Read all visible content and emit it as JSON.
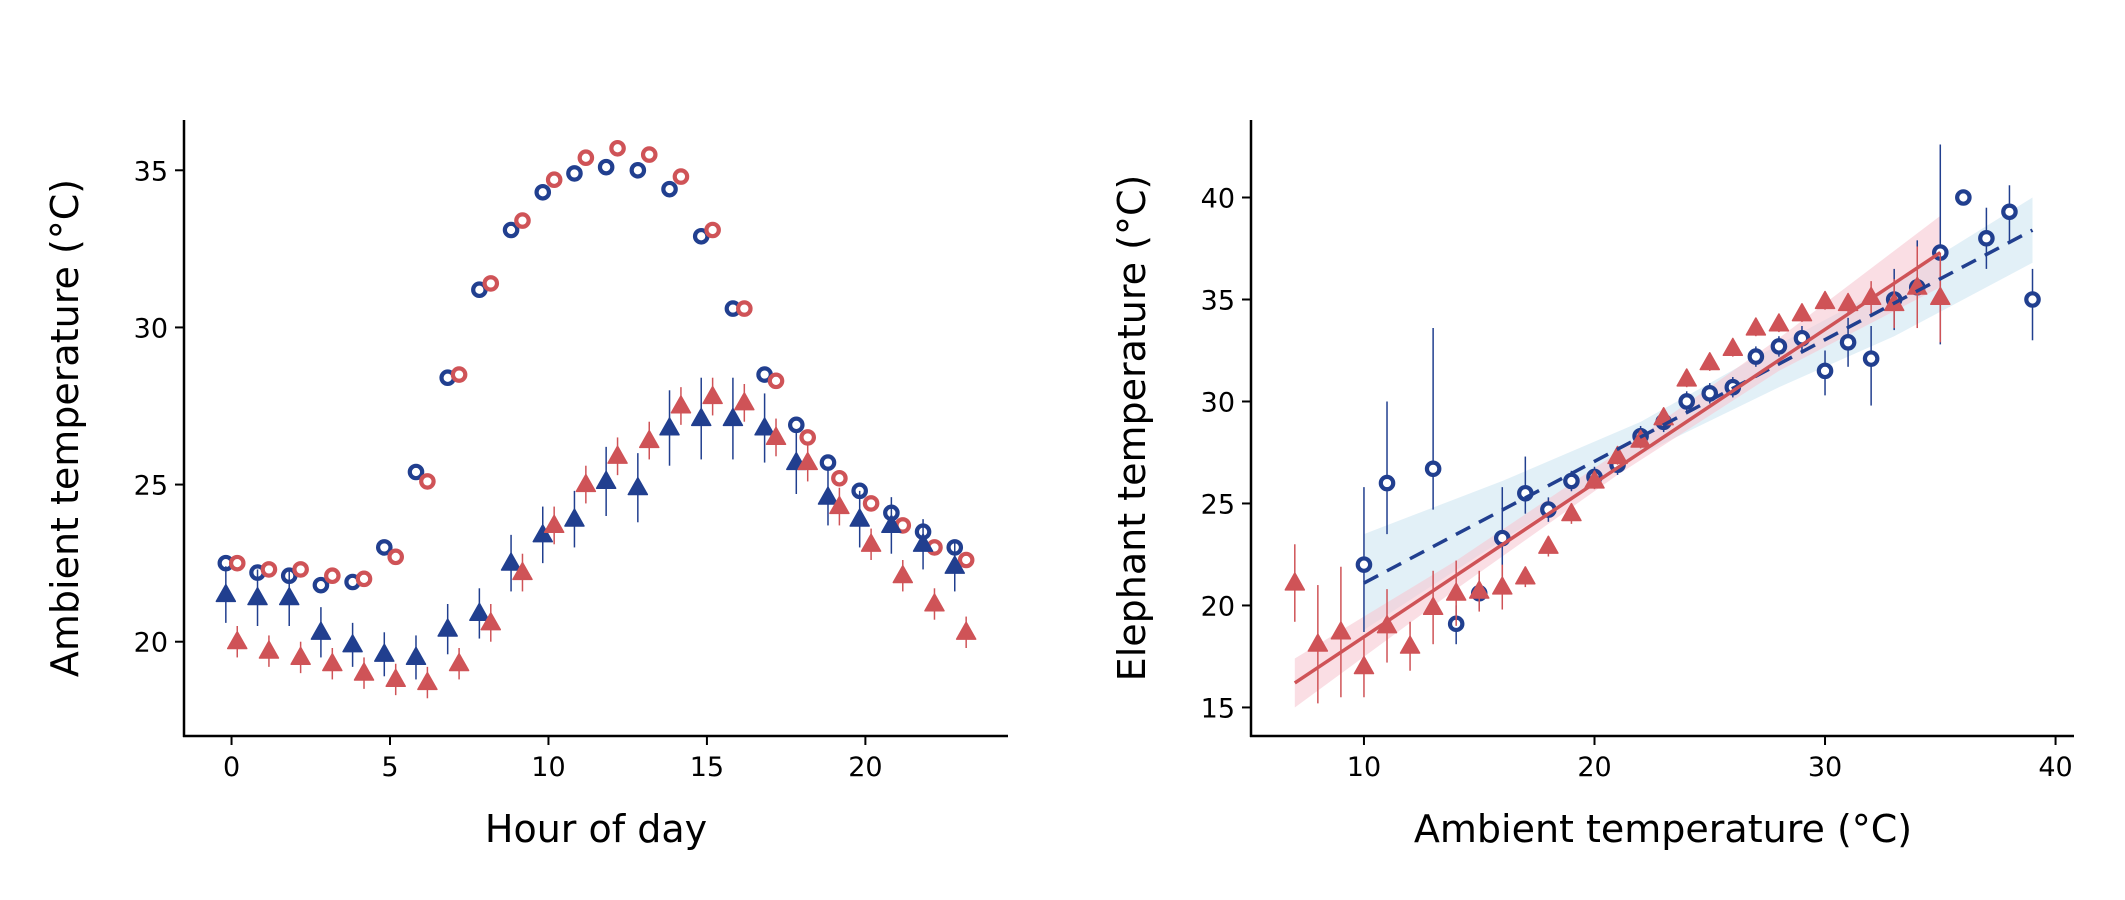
{
  "colors": {
    "blue": "#213f8f",
    "red": "#cf5357",
    "blue_band": "#cfe6f2",
    "red_band": "#f7c8d2"
  },
  "chart_data": [
    {
      "type": "scatter",
      "title": "",
      "xlabel": "Hour of day",
      "ylabel": "Ambient temperature (°C)",
      "xlim": [
        -1.5,
        24.5
      ],
      "ylim": [
        17.0,
        36.6
      ],
      "xticks": [
        "0",
        "5",
        "10",
        "15",
        "20"
      ],
      "yticks": [
        "20",
        "25",
        "30",
        "35"
      ],
      "grid": false,
      "series": [
        {
          "marker": "circle",
          "color": "blue",
          "x_offset": -0.18,
          "x": [
            0,
            1,
            2,
            3,
            4,
            5,
            6,
            7,
            8,
            9,
            10,
            11,
            12,
            13,
            14,
            15,
            16,
            17,
            18,
            19,
            20,
            21,
            22,
            23
          ],
          "y": [
            22.5,
            22.2,
            22.1,
            21.8,
            21.9,
            23.0,
            25.4,
            28.4,
            31.2,
            33.1,
            34.3,
            34.9,
            35.1,
            35.0,
            34.4,
            32.9,
            30.6,
            28.5,
            26.9,
            25.7,
            24.8,
            24.1,
            23.5,
            23.0
          ]
        },
        {
          "marker": "circle",
          "color": "red",
          "x_offset": 0.18,
          "x": [
            0,
            1,
            2,
            3,
            4,
            5,
            6,
            7,
            8,
            9,
            10,
            11,
            12,
            13,
            14,
            15,
            16,
            17,
            18,
            19,
            20,
            21,
            22,
            23
          ],
          "y": [
            22.5,
            22.3,
            22.3,
            22.1,
            22.0,
            22.7,
            25.1,
            28.5,
            31.4,
            33.4,
            34.7,
            35.4,
            35.7,
            35.5,
            34.8,
            33.1,
            30.6,
            28.3,
            26.5,
            25.2,
            24.4,
            23.7,
            23.0,
            22.6
          ]
        },
        {
          "marker": "triangle",
          "color": "blue",
          "x_offset": -0.18,
          "x": [
            0,
            1,
            2,
            3,
            4,
            5,
            6,
            7,
            8,
            9,
            10,
            11,
            12,
            13,
            14,
            15,
            16,
            17,
            18,
            19,
            20,
            21,
            22,
            23
          ],
          "y": [
            21.5,
            21.4,
            21.4,
            20.3,
            19.9,
            19.6,
            19.5,
            20.4,
            20.9,
            22.5,
            23.4,
            23.9,
            25.1,
            24.9,
            26.8,
            27.1,
            27.1,
            26.8,
            25.7,
            24.6,
            23.9,
            23.7,
            23.1,
            22.4
          ],
          "err": [
            0.9,
            0.9,
            0.9,
            0.8,
            0.7,
            0.7,
            0.7,
            0.8,
            0.8,
            0.9,
            0.9,
            0.9,
            1.1,
            1.1,
            1.2,
            1.3,
            1.3,
            1.1,
            1.0,
            0.9,
            0.9,
            0.9,
            0.8,
            0.8
          ]
        },
        {
          "marker": "triangle",
          "color": "red",
          "x_offset": 0.18,
          "x": [
            0,
            1,
            2,
            3,
            4,
            5,
            6,
            7,
            8,
            9,
            10,
            11,
            12,
            13,
            14,
            15,
            16,
            17,
            18,
            19,
            20,
            21,
            22,
            23
          ],
          "y": [
            20.0,
            19.7,
            19.5,
            19.3,
            19.0,
            18.8,
            18.7,
            19.3,
            20.6,
            22.2,
            23.7,
            25.0,
            25.9,
            26.4,
            27.5,
            27.8,
            27.6,
            26.5,
            25.7,
            24.3,
            23.1,
            22.1,
            21.2,
            20.3
          ],
          "err": [
            0.5,
            0.5,
            0.5,
            0.5,
            0.5,
            0.5,
            0.5,
            0.5,
            0.6,
            0.6,
            0.6,
            0.6,
            0.6,
            0.6,
            0.6,
            0.6,
            0.6,
            0.6,
            0.6,
            0.6,
            0.5,
            0.5,
            0.5,
            0.5
          ]
        }
      ]
    },
    {
      "type": "scatter",
      "title": "",
      "xlabel": "Ambient temperature (°C)",
      "ylabel": "Elephant temperature (°C)",
      "xlim": [
        5.1,
        40.8
      ],
      "ylim": [
        13.6,
        43.8
      ],
      "xticks": [
        "10",
        "20",
        "30",
        "40"
      ],
      "yticks": [
        "15",
        "20",
        "25",
        "30",
        "35",
        "40"
      ],
      "grid": false,
      "series": [
        {
          "marker": "circle",
          "color": "blue",
          "x": [
            10,
            11,
            13,
            14,
            15,
            16,
            17,
            18,
            19,
            20,
            21,
            22,
            23,
            24,
            25,
            26,
            27,
            28,
            29,
            30,
            31,
            32,
            33,
            34,
            35,
            36,
            37,
            38,
            39
          ],
          "y": [
            22.0,
            26.0,
            26.7,
            19.1,
            20.6,
            23.3,
            25.5,
            24.7,
            26.1,
            26.3,
            26.9,
            28.3,
            29.0,
            30.0,
            30.4,
            30.7,
            32.2,
            32.7,
            33.1,
            31.5,
            32.9,
            32.1,
            35.0,
            35.6,
            37.3,
            40.0,
            38.0,
            39.3,
            35.0
          ],
          "err_lo": [
            3.3,
            2.5,
            2.0,
            1.0,
            0.8,
            2.5,
            1.0,
            0.6,
            0.5,
            0.5,
            0.5,
            0.5,
            0.5,
            0.5,
            0.5,
            0.5,
            0.5,
            0.5,
            0.6,
            1.2,
            1.2,
            2.3,
            1.5,
            1.5,
            4.5,
            0,
            1.5,
            1.5,
            2.0
          ],
          "err_hi": [
            3.8,
            4.0,
            6.9,
            0.9,
            0.8,
            2.5,
            1.8,
            0.6,
            0.5,
            0.5,
            0.5,
            0.5,
            0.5,
            0.5,
            0.5,
            0.5,
            0.5,
            0.5,
            0.6,
            1.0,
            1.2,
            1.6,
            1.5,
            2.3,
            5.3,
            0,
            1.5,
            1.3,
            1.5
          ]
        },
        {
          "marker": "triangle",
          "color": "red",
          "x": [
            7,
            8,
            9,
            10,
            11,
            12,
            13,
            14,
            15,
            16,
            17,
            18,
            19,
            20,
            21,
            22,
            23,
            24,
            25,
            26,
            27,
            28,
            29,
            30,
            31,
            32,
            33,
            34,
            35
          ],
          "y": [
            21.1,
            18.1,
            18.7,
            17.0,
            19.0,
            18.0,
            19.9,
            20.6,
            20.7,
            20.9,
            21.4,
            22.9,
            24.5,
            26.1,
            27.3,
            28.1,
            29.2,
            31.1,
            31.9,
            32.6,
            33.6,
            33.8,
            34.3,
            34.9,
            34.8,
            35.1,
            34.8,
            35.6,
            35.1
          ],
          "err": [
            1.9,
            2.9,
            3.2,
            1.5,
            1.8,
            1.2,
            1.8,
            1.6,
            1.0,
            1.1,
            0.5,
            0.5,
            0.5,
            0.4,
            0.4,
            0.4,
            0.4,
            0.4,
            0.4,
            0.4,
            0.4,
            0.4,
            0.4,
            0.4,
            0.5,
            0.8,
            1.2,
            2.0,
            2.2
          ]
        }
      ],
      "fits": [
        {
          "color": "blue",
          "style": "dashed",
          "x": [
            10,
            39
          ],
          "y": [
            21.1,
            38.4
          ],
          "band_x": [
            10,
            16,
            22,
            28,
            33,
            39
          ],
          "band_lo": [
            18.8,
            23.2,
            27.4,
            30.7,
            33.2,
            36.8
          ],
          "band_hi": [
            23.5,
            26.1,
            29.0,
            32.8,
            35.8,
            40.0
          ]
        },
        {
          "color": "red",
          "style": "solid",
          "x": [
            7,
            35
          ],
          "y": [
            16.2,
            37.3
          ],
          "band_x": [
            7,
            14,
            21,
            28,
            35
          ],
          "band_lo": [
            15.0,
            20.8,
            26.4,
            31.5,
            35.6
          ],
          "band_hi": [
            17.4,
            22.2,
            27.5,
            33.1,
            39.1
          ]
        }
      ]
    }
  ]
}
